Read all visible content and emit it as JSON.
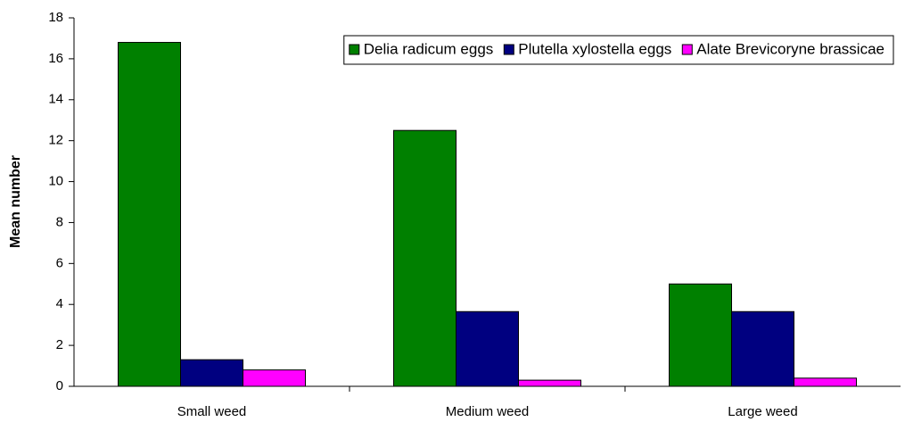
{
  "chart_data": {
    "type": "bar",
    "y_label": "Mean number",
    "categories": [
      "Small weed",
      "Medium weed",
      "Large weed"
    ],
    "series": [
      {
        "name": "Delia radicum eggs",
        "color": "#008000",
        "values": [
          16.8,
          12.5,
          5.0
        ]
      },
      {
        "name": "Plutella xylostella eggs",
        "color": "#000080",
        "values": [
          1.3,
          3.65,
          3.65
        ]
      },
      {
        "name": "Alate Brevicoryne brassicae",
        "color": "#ff00ff",
        "values": [
          0.8,
          0.3,
          0.4
        ]
      }
    ],
    "ylim": [
      0,
      18
    ],
    "yticks": [
      0,
      2,
      4,
      6,
      8,
      10,
      12,
      14,
      16,
      18
    ],
    "legend": "top-right"
  }
}
